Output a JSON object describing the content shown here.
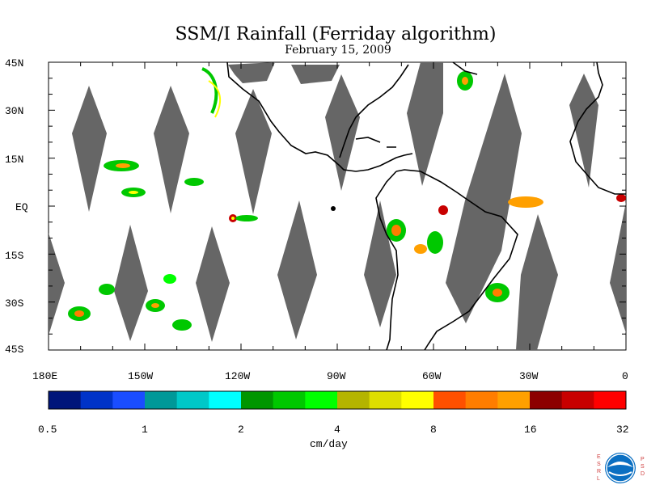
{
  "title": "SSM/I Rainfall (Ferriday algorithm)",
  "date": "February 15, 2009",
  "map": {
    "lat_labels": [
      "45N",
      "30N",
      "15N",
      "EQ",
      "15S",
      "30S",
      "45S"
    ],
    "lon_labels": [
      "180E",
      "150W",
      "120W",
      "90W",
      "60W",
      "30W",
      "0"
    ],
    "coverage_gap_color": "#666666",
    "land_outline_color": "#000000",
    "swath_gaps_present": true
  },
  "colorbar": {
    "units": "cm/day",
    "tick_labels": [
      "0.5",
      "1",
      "2",
      "4",
      "8",
      "16",
      "32"
    ],
    "colors": [
      "#00157a",
      "#0033c8",
      "#1a4dff",
      "#009898",
      "#00c8c8",
      "#00ffff",
      "#009600",
      "#00c800",
      "#00ff00",
      "#b4b400",
      "#dede00",
      "#ffff00",
      "#ff5000",
      "#ff7d00",
      "#ffa000",
      "#8c0000",
      "#c80000",
      "#ff0000"
    ]
  },
  "logo": {
    "left_letters": "ESRL",
    "right_letters": "PSD",
    "name": "NOAA"
  }
}
